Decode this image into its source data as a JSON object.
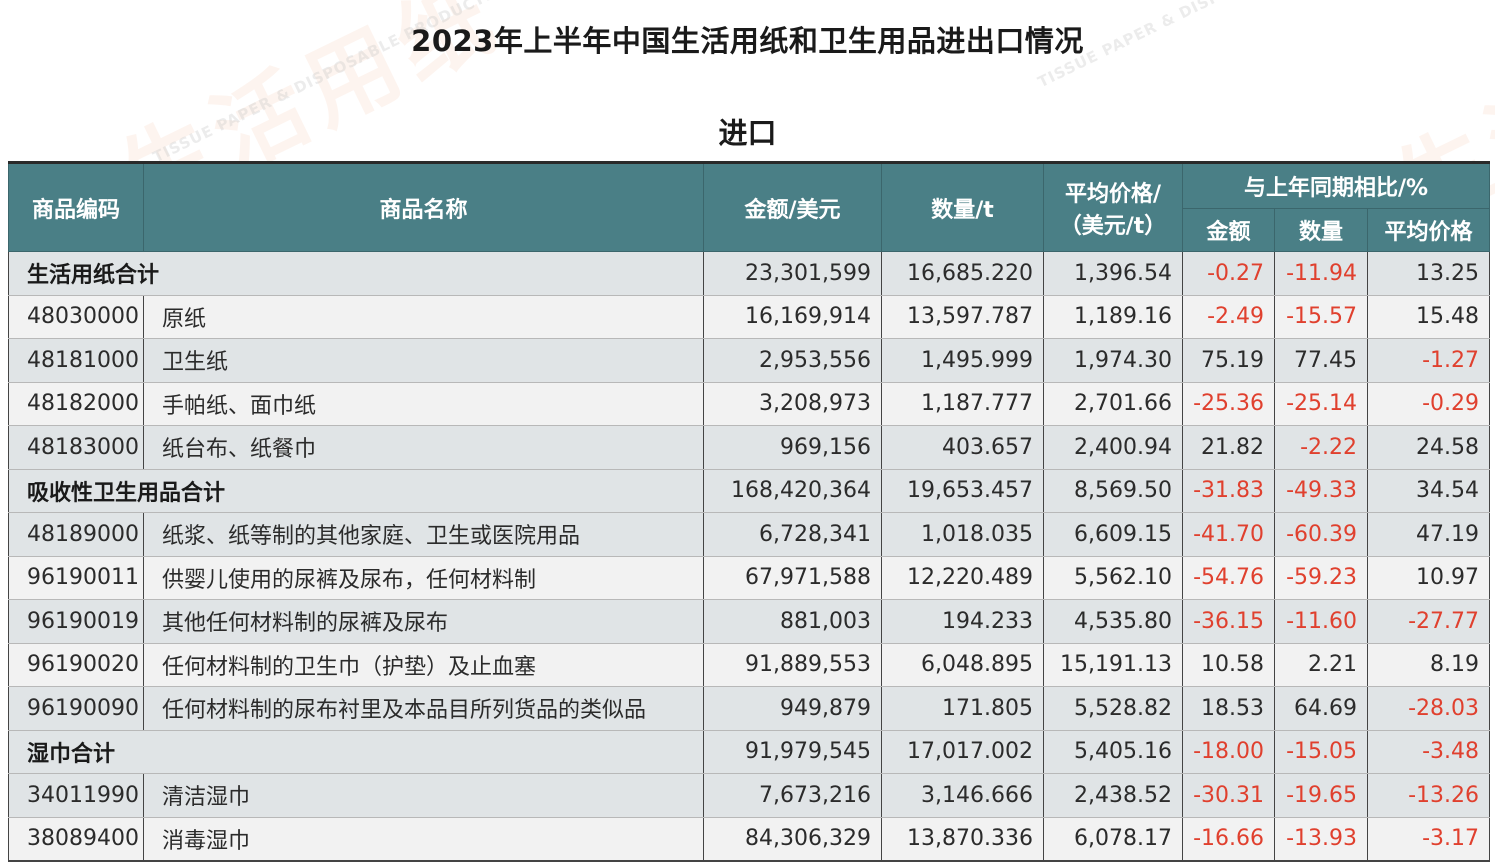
{
  "title": "2023年上半年中国生活用纸和卫生用品进出口情况",
  "subtitle": "进口",
  "watermark": {
    "brand_cn_1": "生活用纸",
    "brand_cn_2": "生活",
    "brand_en_1": "TISSUE PAPER & DISPOSABLE PRODUCTS",
    "brand_en_2": "TISSUE PAPER & DISPOSABLE"
  },
  "headers": {
    "code": "商品编码",
    "name": "商品名称",
    "amount": "金额/美元",
    "quantity": "数量/t",
    "avg_price": "平均价格/（美元/t）",
    "yoy_group": "与上年同期相比/%",
    "yoy_amount": "金额",
    "yoy_quantity": "数量",
    "yoy_price": "平均价格"
  },
  "colors": {
    "header_bg": "#4a7f86",
    "negative": "#e0402e"
  },
  "rows": [
    {
      "total": true,
      "name": "生活用纸合计",
      "amount": "23,301,599",
      "quantity": "16,685.220",
      "avg_price": "1,396.54",
      "yoy_amount": "-0.27",
      "yoy_quantity": "-11.94",
      "yoy_price": "13.25"
    },
    {
      "code": "48030000",
      "name": "原纸",
      "amount": "16,169,914",
      "quantity": "13,597.787",
      "avg_price": "1,189.16",
      "yoy_amount": "-2.49",
      "yoy_quantity": "-15.57",
      "yoy_price": "15.48"
    },
    {
      "code": "48181000",
      "name": "卫生纸",
      "amount": "2,953,556",
      "quantity": "1,495.999",
      "avg_price": "1,974.30",
      "yoy_amount": "75.19",
      "yoy_quantity": "77.45",
      "yoy_price": "-1.27"
    },
    {
      "code": "48182000",
      "name": "手帕纸、面巾纸",
      "amount": "3,208,973",
      "quantity": "1,187.777",
      "avg_price": "2,701.66",
      "yoy_amount": "-25.36",
      "yoy_quantity": "-25.14",
      "yoy_price": "-0.29"
    },
    {
      "code": "48183000",
      "name": "纸台布、纸餐巾",
      "amount": "969,156",
      "quantity": "403.657",
      "avg_price": "2,400.94",
      "yoy_amount": "21.82",
      "yoy_quantity": "-2.22",
      "yoy_price": "24.58"
    },
    {
      "total": true,
      "name": "吸收性卫生用品合计",
      "amount": "168,420,364",
      "quantity": "19,653.457",
      "avg_price": "8,569.50",
      "yoy_amount": "-31.83",
      "yoy_quantity": "-49.33",
      "yoy_price": "34.54"
    },
    {
      "code": "48189000",
      "name": "纸浆、纸等制的其他家庭、卫生或医院用品",
      "amount": "6,728,341",
      "quantity": "1,018.035",
      "avg_price": "6,609.15",
      "yoy_amount": "-41.70",
      "yoy_quantity": "-60.39",
      "yoy_price": "47.19"
    },
    {
      "code": "96190011",
      "name": "供婴儿使用的尿裤及尿布，任何材料制",
      "amount": "67,971,588",
      "quantity": "12,220.489",
      "avg_price": "5,562.10",
      "yoy_amount": "-54.76",
      "yoy_quantity": "-59.23",
      "yoy_price": "10.97"
    },
    {
      "code": "96190019",
      "name": "其他任何材料制的尿裤及尿布",
      "amount": "881,003",
      "quantity": "194.233",
      "avg_price": "4,535.80",
      "yoy_amount": "-36.15",
      "yoy_quantity": "-11.60",
      "yoy_price": "-27.77"
    },
    {
      "code": "96190020",
      "name": "任何材料制的卫生巾（护垫）及止血塞",
      "amount": "91,889,553",
      "quantity": "6,048.895",
      "avg_price": "15,191.13",
      "yoy_amount": "10.58",
      "yoy_quantity": "2.21",
      "yoy_price": "8.19"
    },
    {
      "code": "96190090",
      "name": "任何材料制的尿布衬里及本品目所列货品的类似品",
      "amount": "949,879",
      "quantity": "171.805",
      "avg_price": "5,528.82",
      "yoy_amount": "18.53",
      "yoy_quantity": "64.69",
      "yoy_price": "-28.03"
    },
    {
      "total": true,
      "name": "湿巾合计",
      "amount": "91,979,545",
      "quantity": "17,017.002",
      "avg_price": "5,405.16",
      "yoy_amount": "-18.00",
      "yoy_quantity": "-15.05",
      "yoy_price": "-3.48"
    },
    {
      "code": "34011990",
      "name": "清洁湿巾",
      "amount": "7,673,216",
      "quantity": "3,146.666",
      "avg_price": "2,438.52",
      "yoy_amount": "-30.31",
      "yoy_quantity": "-19.65",
      "yoy_price": "-13.26"
    },
    {
      "code": "38089400",
      "name": "消毒湿巾",
      "amount": "84,306,329",
      "quantity": "13,870.336",
      "avg_price": "6,078.17",
      "yoy_amount": "-16.66",
      "yoy_quantity": "-13.93",
      "yoy_price": "-3.17"
    }
  ]
}
